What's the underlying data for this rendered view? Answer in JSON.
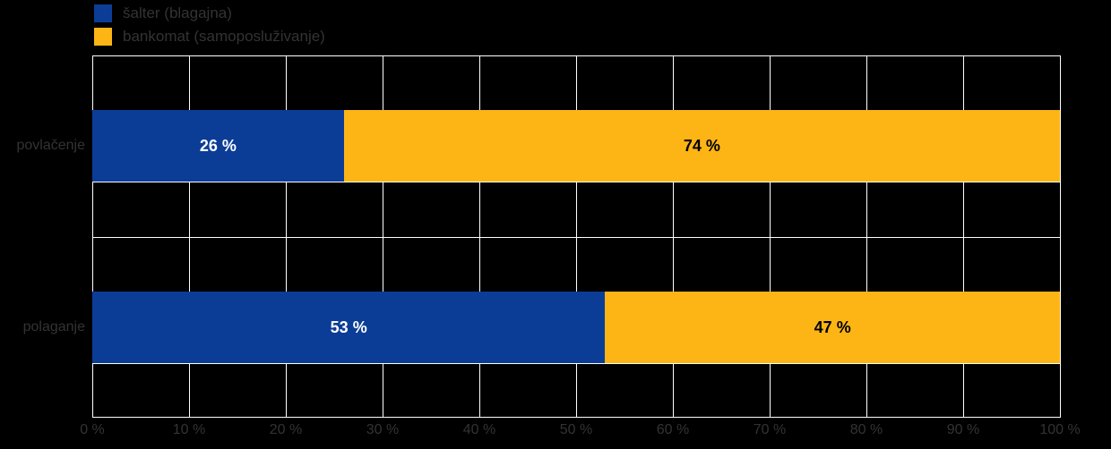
{
  "colors": {
    "background": "#000000",
    "series_blue": "#0b3d97",
    "series_amber": "#fdb515",
    "grid": "#ffffff",
    "axis_text": "#333333",
    "label_on_blue": "#ffffff",
    "label_on_amber": "#000000"
  },
  "legend": {
    "items": [
      {
        "label": "šalter (blagajna)",
        "color_key": "series_blue"
      },
      {
        "label": "bankomat (samoposluživanje)",
        "color_key": "series_amber"
      }
    ]
  },
  "chart_data": {
    "type": "bar",
    "orientation": "horizontal",
    "stacked": true,
    "categories": [
      "povlačenje",
      "polaganje"
    ],
    "series": [
      {
        "name": "šalter (blagajna)",
        "color_key": "series_blue",
        "values": [
          26,
          53
        ]
      },
      {
        "name": "bankomat (samoposluživanje)",
        "color_key": "series_amber",
        "values": [
          74,
          47
        ]
      }
    ],
    "value_labels": [
      [
        "26 %",
        "74 %"
      ],
      [
        "53 %",
        "47 %"
      ]
    ],
    "x_ticks": [
      "0 %",
      "10 %",
      "20 %",
      "30 %",
      "40 %",
      "50 %",
      "60 %",
      "70 %",
      "80 %",
      "90 %",
      "100 %"
    ],
    "xlim": [
      0,
      100
    ],
    "grid": true,
    "legend_position": "top-left"
  }
}
